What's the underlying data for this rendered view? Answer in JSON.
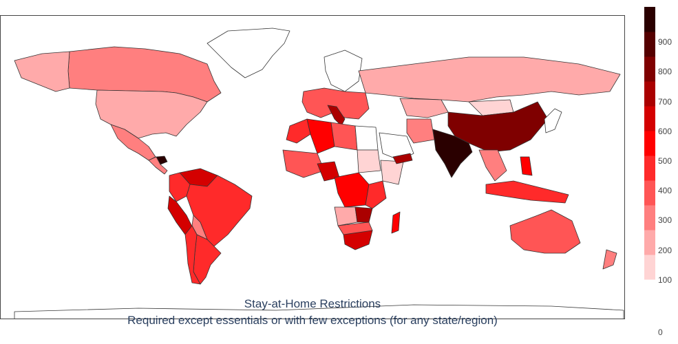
{
  "title": {
    "line1": "Stay-at-Home Restrictions",
    "line2": "Required except essentials or with few exceptions (for any state/region)"
  },
  "colorbar": {
    "ticks": [
      "0",
      "100",
      "200",
      "300",
      "400",
      "500",
      "600",
      "700",
      "800",
      "900"
    ],
    "range": [
      0,
      1000
    ],
    "colors": [
      "#ffffff",
      "#ffd4d4",
      "#ffaaaa",
      "#ff7f7f",
      "#ff5555",
      "#ff2a2a",
      "#ff0000",
      "#d40000",
      "#aa0000",
      "#7f0000",
      "#550000",
      "#2a0000"
    ]
  },
  "map_data": {
    "colorscale_note": "White to dark red",
    "regions": [
      {
        "name": "Canada",
        "value": 330
      },
      {
        "name": "United States",
        "value": 230
      },
      {
        "name": "Mexico",
        "value": 330
      },
      {
        "name": "Honduras",
        "value": 980
      },
      {
        "name": "Colombia",
        "value": 530
      },
      {
        "name": "Venezuela",
        "value": 630
      },
      {
        "name": "Peru",
        "value": 630
      },
      {
        "name": "Brazil",
        "value": 530
      },
      {
        "name": "Bolivia",
        "value": 330
      },
      {
        "name": "Argentina",
        "value": 530
      },
      {
        "name": "Chile",
        "value": 530
      },
      {
        "name": "Greenland",
        "value": 0
      },
      {
        "name": "Russia",
        "value": 230
      },
      {
        "name": "China",
        "value": 880
      },
      {
        "name": "India",
        "value": 980
      },
      {
        "name": "Mongolia",
        "value": 130
      },
      {
        "name": "Kazakhstan",
        "value": 230
      },
      {
        "name": "Iran",
        "value": 330
      },
      {
        "name": "Saudi Arabia",
        "value": 0
      },
      {
        "name": "Algeria",
        "value": 530
      },
      {
        "name": "Libya",
        "value": 330
      },
      {
        "name": "Egypt",
        "value": 0
      },
      {
        "name": "Nigeria",
        "value": 630
      },
      {
        "name": "DR Congo",
        "value": 530
      },
      {
        "name": "South Africa",
        "value": 630
      },
      {
        "name": "Madagascar",
        "value": 530
      },
      {
        "name": "Australia",
        "value": 430
      },
      {
        "name": "Indonesia",
        "value": 530
      },
      {
        "name": "Italy",
        "value": 780
      },
      {
        "name": "Europe",
        "value": 430
      },
      {
        "name": "Scandinavia",
        "value": 0
      },
      {
        "name": "Japan",
        "value": 0
      },
      {
        "name": "New Zealand",
        "value": 330
      },
      {
        "name": "Antarctica",
        "value": 0
      }
    ]
  }
}
